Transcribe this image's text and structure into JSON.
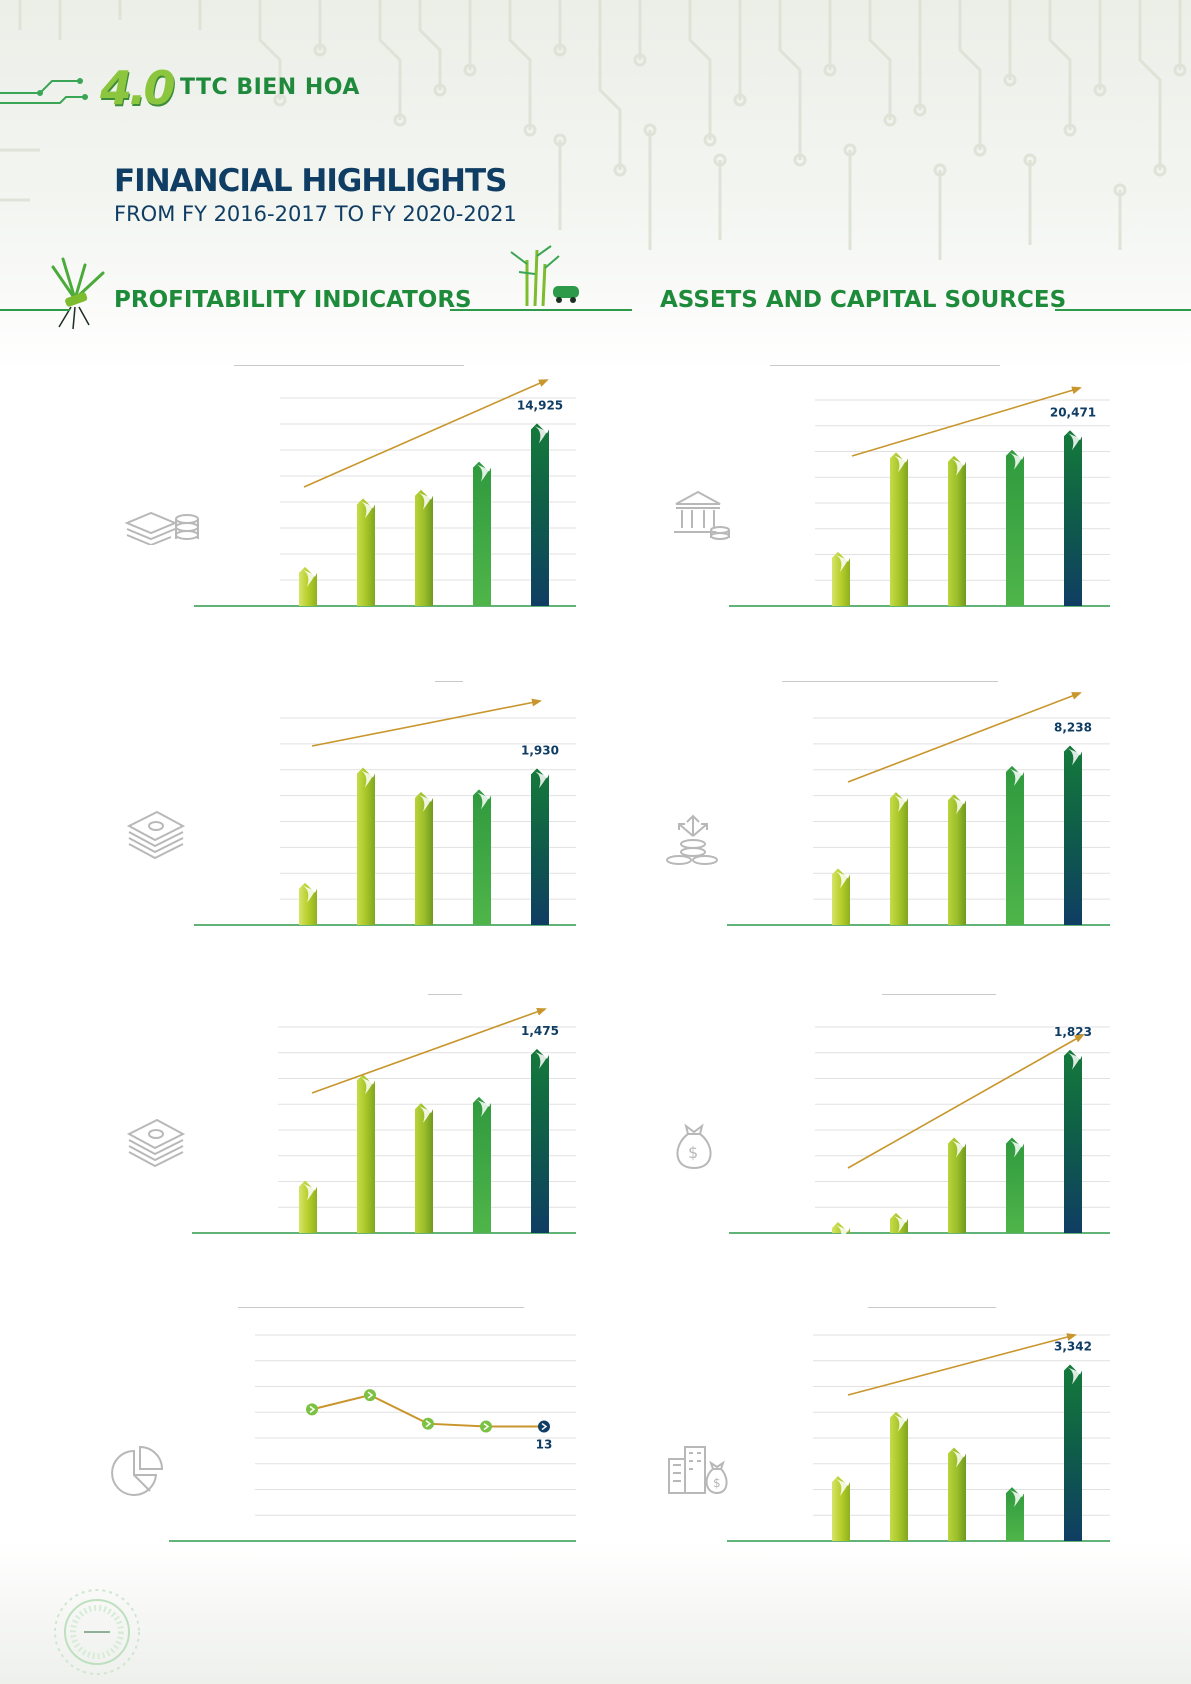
{
  "brand": {
    "logo_mark": "4.0",
    "name": "TTC BIEN HOA"
  },
  "header": {
    "title": "FINANCIAL HIGHLIGHTS",
    "subtitle": "FROM FY 2016-2017 TO FY 2020-2021"
  },
  "sections": {
    "left": "PROFITABILITY INDICATORS",
    "right": "ASSETS AND CAPITAL SOURCES"
  },
  "colors": {
    "navy": "#0f3d63",
    "green": "#1e8b3b",
    "lime": "#b5cf2e",
    "trend": "#c8962c",
    "axis": "#2d9a4a"
  },
  "icons": {
    "chart1": "money-coins-icon",
    "chart2": "bank-icon",
    "chart3": "cash-stack-icon",
    "chart4": "coins-arrows-icon",
    "chart5": "cash-stack-icon",
    "chart6": "money-bag-icon",
    "chart7": "pie-chart-icon",
    "chart8": "buildings-money-icon"
  },
  "chart_data": [
    {
      "type": "bar",
      "values": [
        3200,
        8800,
        9500,
        11800,
        14925
      ],
      "labels": [
        "",
        "",
        "",
        "",
        "14,925"
      ],
      "ylim": [
        0,
        17000
      ],
      "trend": true,
      "grid": true
    },
    {
      "type": "bar",
      "values": [
        6300,
        17900,
        17500,
        18200,
        20471
      ],
      "labels": [
        "",
        "",
        "",
        "",
        "20,471"
      ],
      "ylim": [
        0,
        24000
      ],
      "trend": true,
      "grid": true
    },
    {
      "type": "bar",
      "values": [
        520,
        1940,
        1640,
        1670,
        1930
      ],
      "labels": [
        "",
        "",
        "",
        "",
        "1,930"
      ],
      "ylim": [
        0,
        2550
      ],
      "trend": true,
      "grid": true
    },
    {
      "type": "bar",
      "values": [
        2600,
        6100,
        6000,
        7300,
        8238
      ],
      "labels": [
        "",
        "",
        "",
        "",
        "8,238"
      ],
      "ylim": [
        0,
        9500
      ],
      "trend": true,
      "grid": true
    },
    {
      "type": "bar",
      "values": [
        420,
        1270,
        1040,
        1090,
        1475
      ],
      "labels": [
        "",
        "",
        "",
        "",
        "1,475"
      ],
      "ylim": [
        0,
        1650
      ],
      "trend": true,
      "grid": true
    },
    {
      "type": "bar",
      "values": [
        110,
        200,
        950,
        950,
        1823
      ],
      "labels": [
        "",
        "",
        "",
        "",
        "1,823"
      ],
      "ylim": [
        0,
        2050
      ],
      "trend": true,
      "grid": true
    },
    {
      "type": "line",
      "values": [
        19,
        24,
        14,
        13,
        13
      ],
      "labels": [
        "",
        "",
        "",
        "",
        "13"
      ],
      "ylim": [
        -27,
        45
      ],
      "trend": false,
      "grid": true
    },
    {
      "type": "bar",
      "values": [
        1230,
        2450,
        1770,
        1020,
        3342
      ],
      "labels": [
        "",
        "",
        "",
        "",
        "3,342"
      ],
      "ylim": [
        0,
        3900
      ],
      "trend": true,
      "grid": true
    }
  ]
}
